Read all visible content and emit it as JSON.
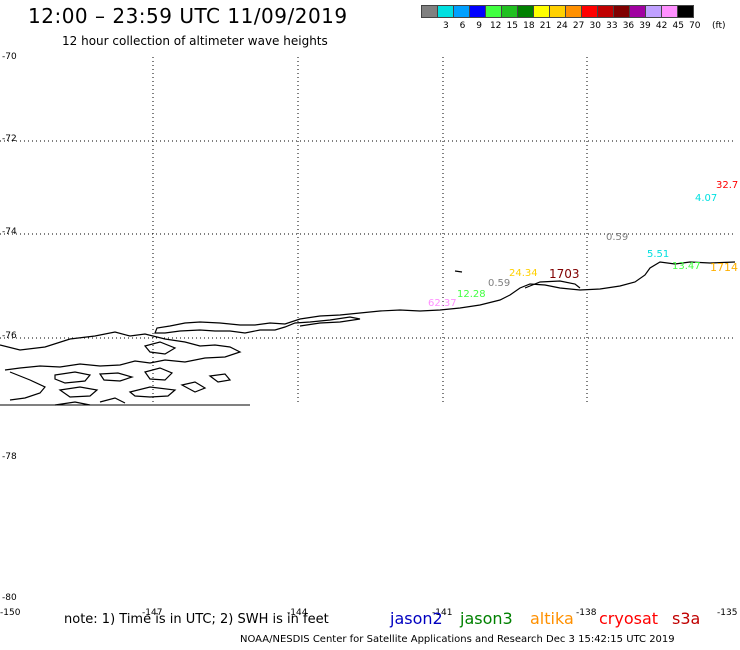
{
  "title": "12:00 – 23:59 UTC 11/09/2019",
  "subtitle": "12 hour collection of altimeter wave heights",
  "scale": {
    "labels": [
      "3",
      "6",
      "9",
      "12",
      "15",
      "18",
      "21",
      "24",
      "27",
      "30",
      "33",
      "36",
      "39",
      "42",
      "45",
      "70"
    ],
    "unit": "(ft)",
    "colors": [
      "#808080",
      "#00e0e0",
      "#00a0ff",
      "#0000ff",
      "#40ff40",
      "#20c020",
      "#008000",
      "#ffff00",
      "#ffd000",
      "#ff9000",
      "#ff0000",
      "#c00000",
      "#800000",
      "#a000a0",
      "#c0a0ff",
      "#ff90ff",
      "#000000"
    ]
  },
  "lat_labels": [
    "-70",
    "-72",
    "-74",
    "-76",
    "-78",
    "-80"
  ],
  "lon_labels": [
    "-150",
    "-147",
    "-144",
    "-141",
    "-138",
    "-135"
  ],
  "wave_values": [
    {
      "text": "32.7",
      "color": "#ff0000"
    },
    {
      "text": "4.07",
      "color": "#00e0e0"
    },
    {
      "text": "0.59",
      "color": "#808080"
    },
    {
      "text": "5.51",
      "color": "#00e0e0"
    },
    {
      "text": "13.47",
      "color": "#40ff40"
    },
    {
      "text": "1714",
      "color": "#ffb000"
    },
    {
      "text": "24.34",
      "color": "#ffd000"
    },
    {
      "text": "1703",
      "color": "#800000"
    },
    {
      "text": "0.59",
      "color": "#808080"
    },
    {
      "text": "12.28",
      "color": "#40ff40"
    },
    {
      "text": "62.37",
      "color": "#ff90ff"
    }
  ],
  "note": "note: 1) Time is in UTC; 2) SWH is in feet",
  "satellites": [
    {
      "name": "jason2",
      "color": "#0000c0"
    },
    {
      "name": "jason3",
      "color": "#008000"
    },
    {
      "name": "altika",
      "color": "#ff9000"
    },
    {
      "name": "cryosat",
      "color": "#ff0000"
    },
    {
      "name": "s3a",
      "color": "#c00000"
    }
  ],
  "credit": "NOAA/NESDIS Center for Satellite Applications and Research   Dec  3 15:42:15 UTC 2019"
}
